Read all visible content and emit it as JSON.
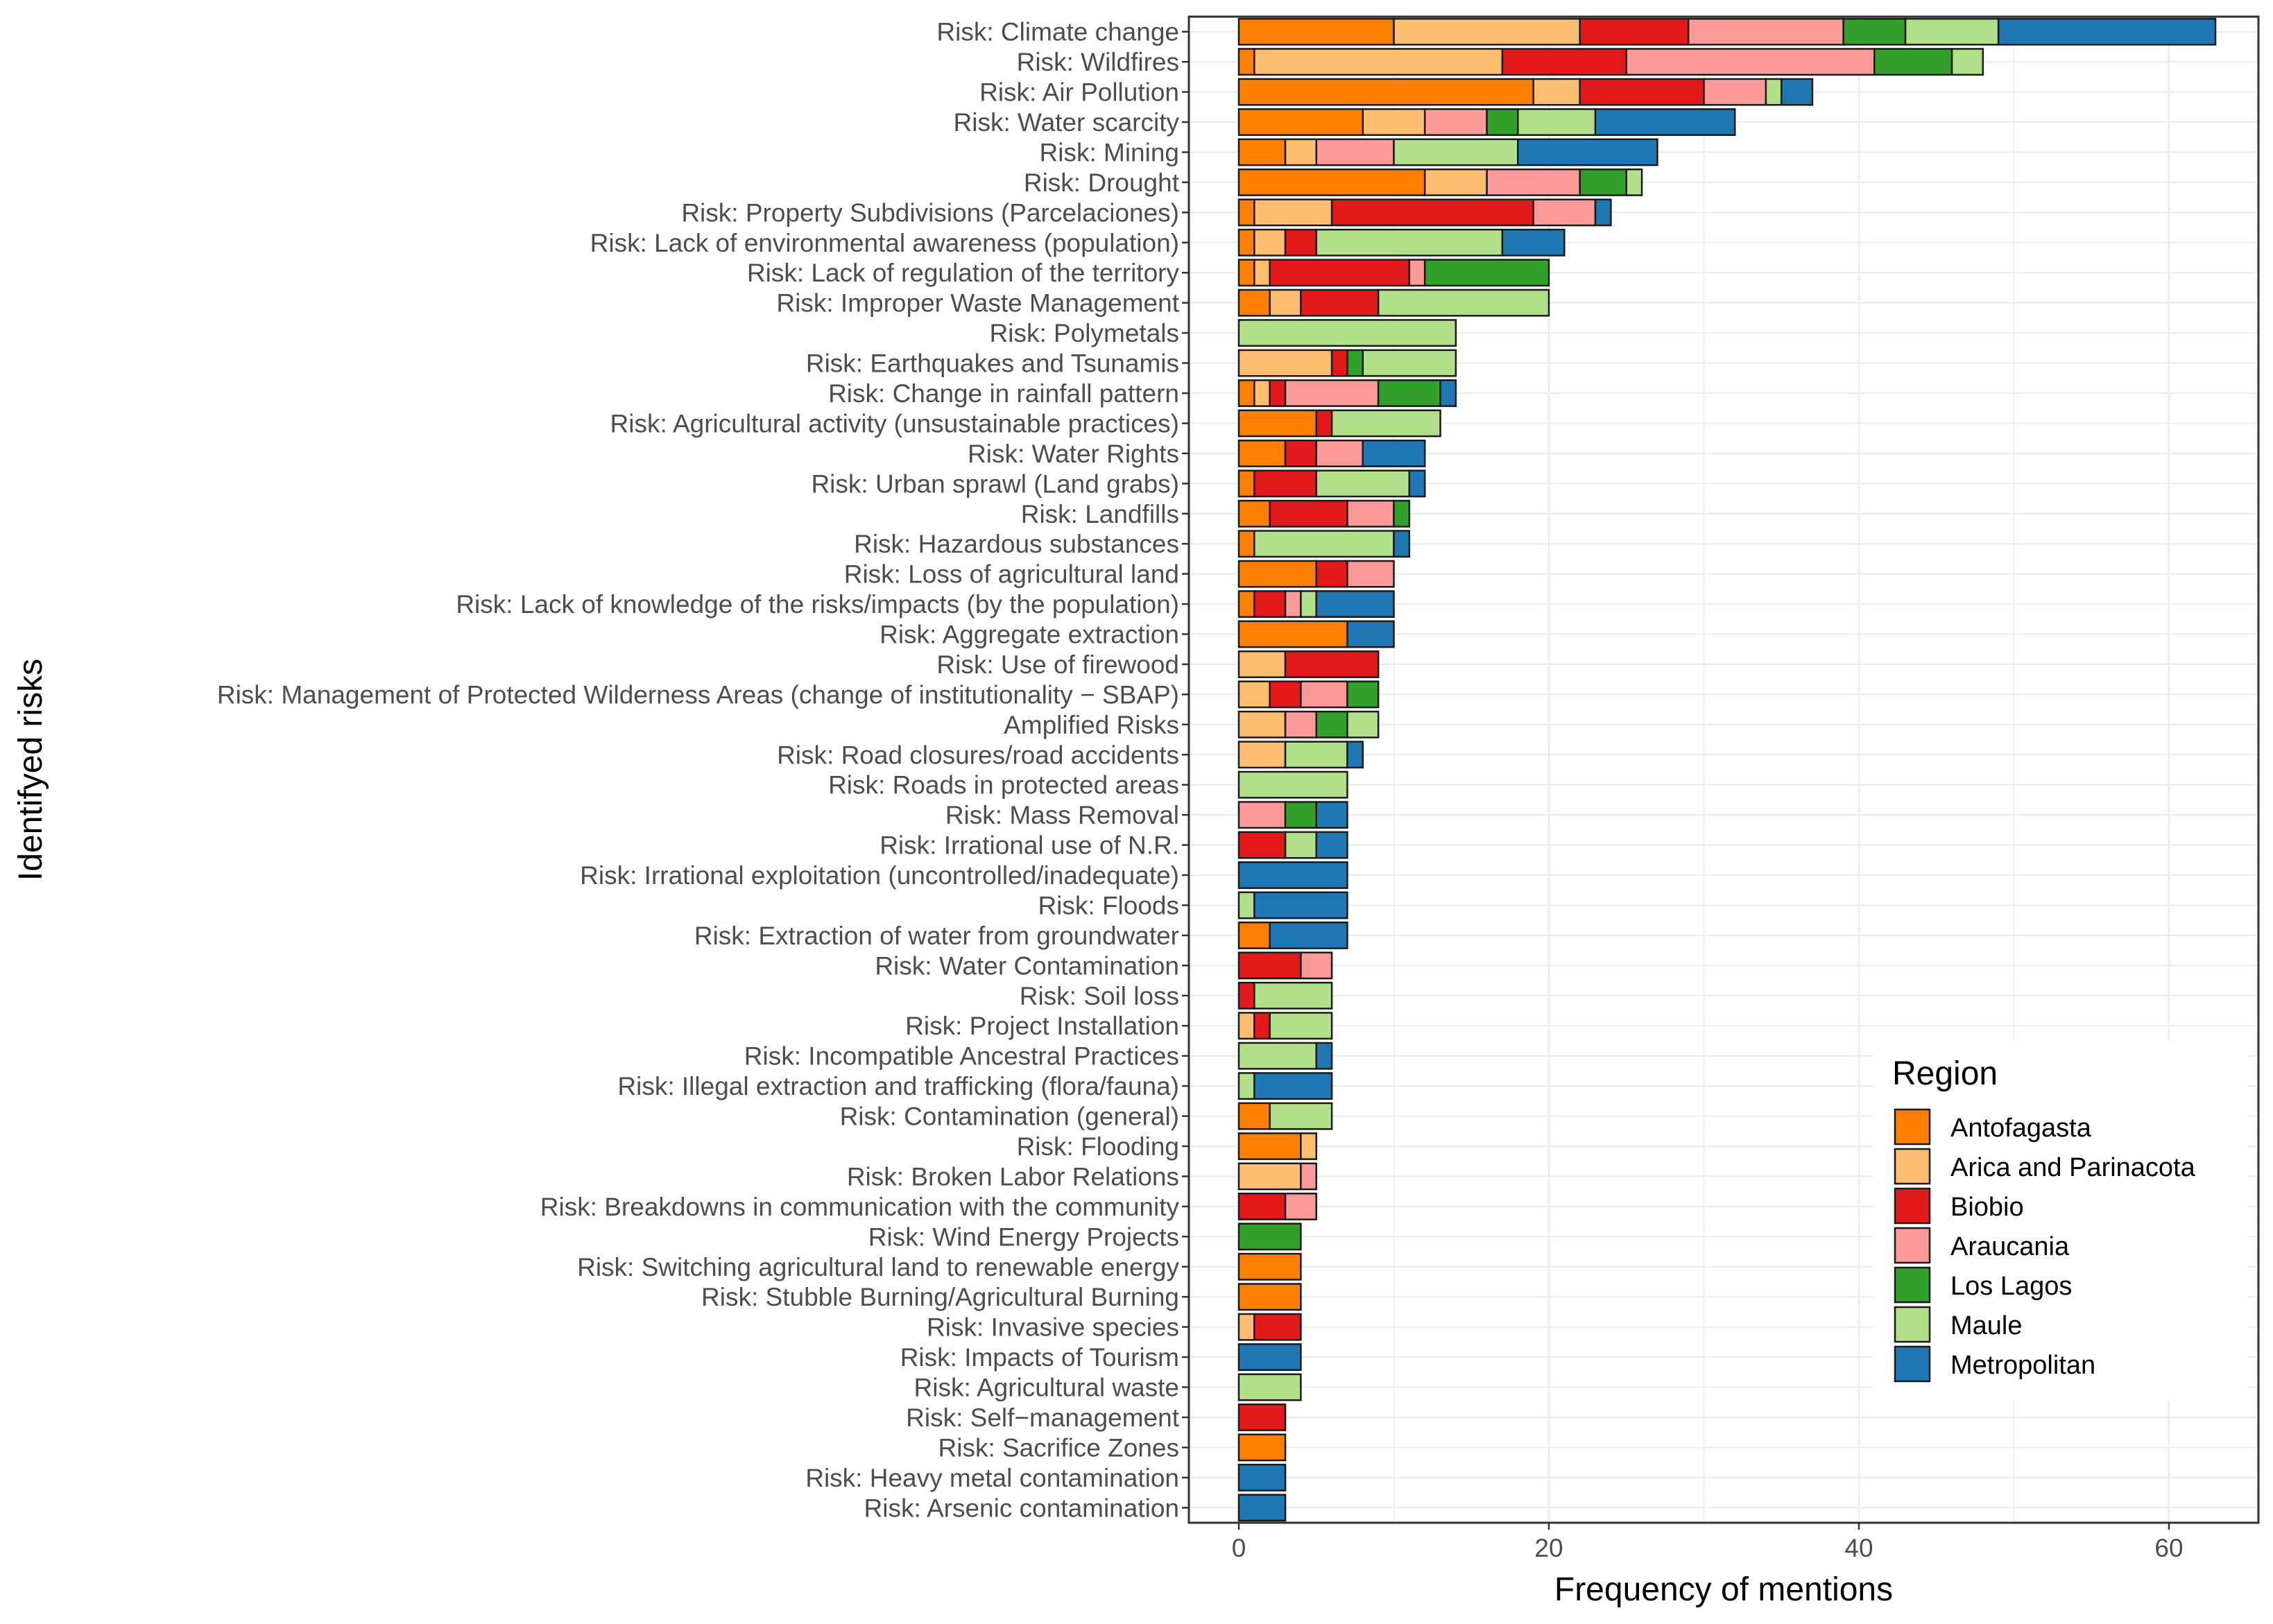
{
  "chart_data": {
    "type": "bar",
    "orientation": "horizontal",
    "stacked": true,
    "title": "",
    "xlabel": "Frequency of mentions",
    "ylabel": "Identifyed risks",
    "xlim": [
      0,
      66
    ],
    "xticks": [
      0,
      20,
      40,
      60
    ],
    "grid": true,
    "legend": {
      "title": "Region",
      "position": "bottom-right"
    },
    "categories": [
      "Risk: Climate change",
      "Risk: Wildfires",
      "Risk: Air Pollution",
      "Risk: Water scarcity",
      "Risk: Mining",
      "Risk: Drought",
      "Risk: Property Subdivisions (Parcelaciones)",
      "Risk: Lack of environmental awareness (population)",
      "Risk: Lack of regulation of the territory",
      "Risk: Improper Waste Management",
      "Risk: Polymetals",
      "Risk: Earthquakes and Tsunamis",
      "Risk: Change in rainfall pattern",
      "Risk: Agricultural activity (unsustainable practices)",
      "Risk: Water Rights",
      "Risk: Urban sprawl (Land grabs)",
      "Risk: Landfills",
      "Risk: Hazardous substances",
      "Risk: Loss of agricultural land",
      "Risk: Lack of knowledge of the risks/impacts (by the population)",
      "Risk: Aggregate extraction",
      "Risk: Use of firewood",
      "Risk: Management of Protected Wilderness Areas (change of institutionality − SBAP)",
      "Amplified Risks",
      "Risk: Road closures/road accidents",
      "Risk: Roads in protected areas",
      "Risk: Mass Removal",
      "Risk: Irrational use of N.R.",
      "Risk: Irrational exploitation (uncontrolled/inadequate)",
      "Risk: Floods",
      "Risk: Extraction of water from groundwater",
      "Risk: Water Contamination",
      "Risk: Soil loss",
      "Risk: Project Installation",
      "Risk: Incompatible Ancestral Practices",
      "Risk: Illegal extraction and trafficking (flora/fauna)",
      "Risk: Contamination (general)",
      "Risk: Flooding",
      "Risk: Broken Labor Relations",
      "Risk: Breakdowns in communication with the community",
      "Risk: Wind Energy Projects",
      "Risk: Switching agricultural land to renewable energy",
      "Risk: Stubble Burning/Agricultural Burning",
      "Risk: Invasive species",
      "Risk: Impacts of Tourism",
      "Risk: Agricultural waste",
      "Risk: Self−management",
      "Risk: Sacrifice Zones",
      "Risk: Heavy metal contamination",
      "Risk: Arsenic contamination"
    ],
    "series": [
      {
        "name": "Antofagasta",
        "color": "#ff7f00",
        "values": [
          10,
          1,
          19,
          8,
          3,
          12,
          1,
          1,
          1,
          2,
          0,
          0,
          1,
          5,
          3,
          1,
          2,
          1,
          5,
          1,
          7,
          0,
          0,
          0,
          0,
          0,
          0,
          0,
          0,
          0,
          2,
          0,
          0,
          0,
          0,
          0,
          2,
          4,
          0,
          0,
          0,
          4,
          4,
          0,
          0,
          0,
          0,
          3,
          0,
          0
        ]
      },
      {
        "name": "Arica and Parinacota",
        "color": "#fdbf6f",
        "values": [
          12,
          16,
          3,
          4,
          2,
          4,
          5,
          2,
          1,
          2,
          0,
          6,
          1,
          0,
          0,
          0,
          0,
          0,
          0,
          0,
          0,
          3,
          2,
          3,
          3,
          0,
          0,
          0,
          0,
          0,
          0,
          0,
          0,
          1,
          0,
          0,
          0,
          1,
          4,
          0,
          0,
          0,
          0,
          1,
          0,
          0,
          0,
          0,
          0,
          0
        ]
      },
      {
        "name": "Biobio",
        "color": "#e31a1c",
        "values": [
          7,
          8,
          8,
          0,
          0,
          0,
          13,
          2,
          9,
          5,
          0,
          1,
          1,
          1,
          2,
          4,
          5,
          0,
          2,
          2,
          0,
          6,
          2,
          0,
          0,
          0,
          0,
          3,
          0,
          0,
          0,
          4,
          1,
          1,
          0,
          0,
          0,
          0,
          0,
          3,
          0,
          0,
          0,
          3,
          0,
          0,
          3,
          0,
          0,
          0
        ]
      },
      {
        "name": "Araucania",
        "color": "#fb9a99",
        "values": [
          10,
          16,
          4,
          4,
          5,
          6,
          4,
          0,
          1,
          0,
          0,
          0,
          6,
          0,
          3,
          0,
          3,
          0,
          3,
          1,
          0,
          0,
          3,
          2,
          0,
          0,
          3,
          0,
          0,
          0,
          0,
          2,
          0,
          0,
          0,
          0,
          0,
          0,
          1,
          2,
          0,
          0,
          0,
          0,
          0,
          0,
          0,
          0,
          0,
          0
        ]
      },
      {
        "name": "Los Lagos",
        "color": "#33a02c",
        "values": [
          4,
          5,
          0,
          2,
          0,
          3,
          0,
          0,
          8,
          0,
          0,
          1,
          4,
          0,
          0,
          0,
          1,
          0,
          0,
          0,
          0,
          0,
          2,
          2,
          0,
          0,
          2,
          0,
          0,
          0,
          0,
          0,
          0,
          0,
          0,
          0,
          0,
          0,
          0,
          0,
          4,
          0,
          0,
          0,
          0,
          0,
          0,
          0,
          0,
          0
        ]
      },
      {
        "name": "Maule",
        "color": "#b2df8a",
        "values": [
          6,
          2,
          1,
          5,
          8,
          1,
          0,
          12,
          0,
          11,
          14,
          6,
          0,
          7,
          0,
          6,
          0,
          9,
          0,
          1,
          0,
          0,
          0,
          2,
          4,
          7,
          0,
          2,
          0,
          1,
          0,
          0,
          5,
          4,
          5,
          1,
          4,
          0,
          0,
          0,
          0,
          0,
          0,
          0,
          0,
          4,
          0,
          0,
          0,
          0
        ]
      },
      {
        "name": "Metropolitan",
        "color": "#1f78b4",
        "values": [
          14,
          0,
          2,
          9,
          9,
          0,
          1,
          4,
          0,
          0,
          0,
          0,
          1,
          0,
          4,
          1,
          0,
          1,
          0,
          5,
          3,
          0,
          0,
          0,
          1,
          0,
          2,
          2,
          7,
          6,
          5,
          0,
          0,
          0,
          1,
          5,
          0,
          0,
          0,
          0,
          0,
          0,
          0,
          0,
          4,
          0,
          0,
          0,
          3,
          3
        ]
      }
    ]
  }
}
